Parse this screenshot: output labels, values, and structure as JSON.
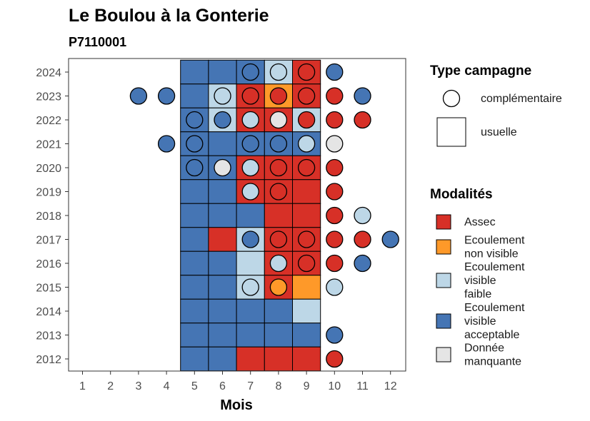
{
  "chart_data": {
    "type": "heatmap",
    "title": "Le Boulou à la Gonterie",
    "subtitle": "P7110001",
    "xlabel": "Mois",
    "ylabel": "",
    "x_ticks": [
      1,
      2,
      3,
      4,
      5,
      6,
      7,
      8,
      9,
      10,
      11,
      12
    ],
    "y_ticks": [
      2012,
      2013,
      2014,
      2015,
      2016,
      2017,
      2018,
      2019,
      2020,
      2021,
      2022,
      2023,
      2024
    ],
    "grid": false,
    "legend_position": "right",
    "campaign_legend": {
      "title": "Type campagne",
      "items": [
        {
          "key": "complementaire",
          "label": "complémentaire",
          "shape": "circle"
        },
        {
          "key": "usuelle",
          "label": "usuelle",
          "shape": "square"
        }
      ]
    },
    "modalities_legend": {
      "title": "Modalités",
      "items": [
        {
          "key": "A",
          "lines": [
            "Assec"
          ],
          "color": "#d73027"
        },
        {
          "key": "N",
          "lines": [
            "Ecoulement",
            "non visible"
          ],
          "color": "#fe9929"
        },
        {
          "key": "F",
          "lines": [
            "Ecoulement",
            "visible",
            "faible"
          ],
          "color": "#bdd7e7"
        },
        {
          "key": "V",
          "lines": [
            "Ecoulement",
            "visible",
            "acceptable"
          ],
          "color": "#4575b4"
        },
        {
          "key": "M",
          "lines": [
            "Donnée",
            "manquante"
          ],
          "color": "#e5e5e5"
        }
      ]
    },
    "usuelle": [
      {
        "year": 2024,
        "months": {
          "5": "V",
          "6": "V",
          "7": "V",
          "8": "F",
          "9": "A"
        }
      },
      {
        "year": 2023,
        "months": {
          "5": "V",
          "6": "F",
          "7": "A",
          "8": "N",
          "9": "A"
        }
      },
      {
        "year": 2022,
        "months": {
          "5": "V",
          "6": "F",
          "7": "A",
          "8": "A",
          "9": "F"
        }
      },
      {
        "year": 2021,
        "months": {
          "5": "V",
          "6": "V",
          "7": "V",
          "8": "V",
          "9": "V"
        }
      },
      {
        "year": 2020,
        "months": {
          "5": "V",
          "6": "V",
          "7": "A",
          "8": "A",
          "9": "A"
        }
      },
      {
        "year": 2019,
        "months": {
          "5": "V",
          "6": "V",
          "7": "A",
          "8": "A",
          "9": "A"
        }
      },
      {
        "year": 2018,
        "months": {
          "5": "V",
          "6": "V",
          "7": "V",
          "8": "A",
          "9": "A"
        }
      },
      {
        "year": 2017,
        "months": {
          "5": "V",
          "6": "A",
          "7": "F",
          "8": "A",
          "9": "A"
        }
      },
      {
        "year": 2016,
        "months": {
          "5": "V",
          "6": "V",
          "7": "F",
          "8": "A",
          "9": "A"
        }
      },
      {
        "year": 2015,
        "months": {
          "5": "V",
          "6": "V",
          "7": "F",
          "8": "A",
          "9": "N"
        }
      },
      {
        "year": 2014,
        "months": {
          "5": "V",
          "6": "V",
          "7": "V",
          "8": "V",
          "9": "F"
        }
      },
      {
        "year": 2013,
        "months": {
          "5": "V",
          "6": "V",
          "7": "V",
          "8": "V",
          "9": "V"
        }
      },
      {
        "year": 2012,
        "months": {
          "5": "V",
          "6": "V",
          "7": "A",
          "8": "A",
          "9": "A"
        }
      }
    ],
    "complementaire": [
      {
        "year": 2024,
        "months": {
          "7": "V",
          "8": "F",
          "9": "A",
          "10": "V"
        }
      },
      {
        "year": 2023,
        "months": {
          "3": "V",
          "4": "V",
          "6": "F",
          "7": "A",
          "8": "A",
          "9": "A",
          "10": "A",
          "11": "V"
        }
      },
      {
        "year": 2022,
        "months": {
          "5": "V",
          "6": "V",
          "7": "F",
          "8": "M",
          "9": "A",
          "10": "A",
          "11": "A"
        }
      },
      {
        "year": 2021,
        "months": {
          "4": "V",
          "5": "V",
          "7": "V",
          "8": "V",
          "9": "F",
          "10": "M"
        }
      },
      {
        "year": 2020,
        "months": {
          "5": "V",
          "6": "M",
          "7": "F",
          "8": "A",
          "9": "A",
          "10": "A"
        }
      },
      {
        "year": 2019,
        "months": {
          "7": "F",
          "8": "A",
          "10": "A"
        }
      },
      {
        "year": 2018,
        "months": {
          "10": "A",
          "11": "F"
        }
      },
      {
        "year": 2017,
        "months": {
          "7": "V",
          "8": "A",
          "9": "A",
          "10": "A",
          "11": "A",
          "12": "V"
        }
      },
      {
        "year": 2016,
        "months": {
          "8": "F",
          "9": "A",
          "10": "A",
          "11": "V"
        }
      },
      {
        "year": 2015,
        "months": {
          "7": "F",
          "8": "N",
          "10": "F"
        }
      },
      {
        "year": 2013,
        "months": {
          "10": "V"
        }
      },
      {
        "year": 2012,
        "months": {
          "10": "A"
        }
      }
    ]
  }
}
